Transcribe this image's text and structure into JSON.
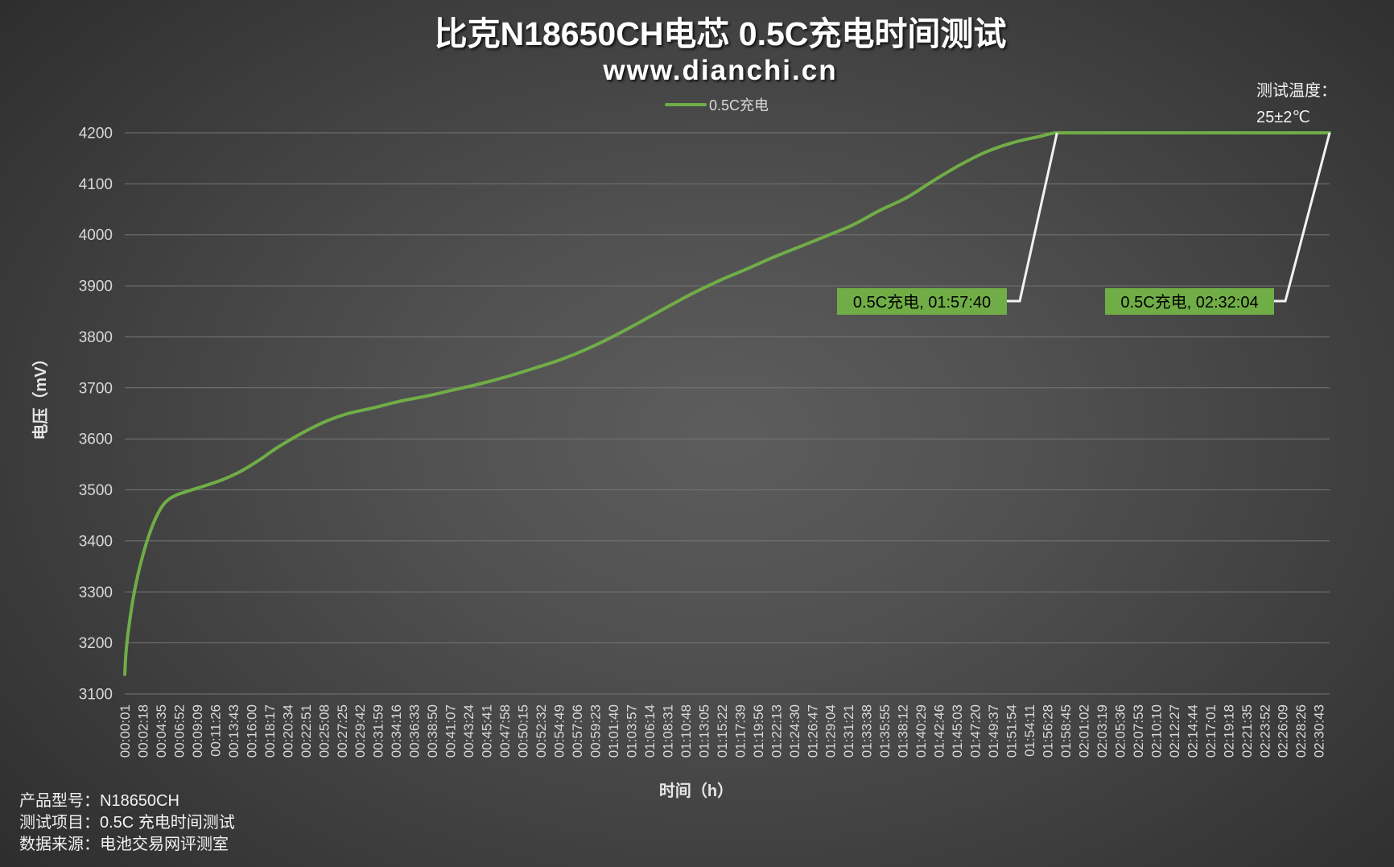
{
  "chart_data": {
    "type": "line",
    "title": "比克N18650CH电芯 0.5C充电时间测试",
    "subtitle": "www.dianchi.cn",
    "xlabel": "时间（h）",
    "ylabel": "电压（mV）",
    "ylim": [
      3100,
      4200
    ],
    "xlim": [
      "00:00:01",
      "02:32:04"
    ],
    "grid": "horizontal",
    "legend": {
      "position": "top"
    },
    "y_ticks": [
      3100,
      3200,
      3300,
      3400,
      3500,
      3600,
      3700,
      3800,
      3900,
      4000,
      4100,
      4200
    ],
    "x_ticks": [
      "00:00:01",
      "00:02:18",
      "00:04:35",
      "00:06:52",
      "00:09:09",
      "00:11:26",
      "00:13:43",
      "00:16:00",
      "00:18:17",
      "00:20:34",
      "00:22:51",
      "00:25:08",
      "00:27:25",
      "00:29:42",
      "00:31:59",
      "00:34:16",
      "00:36:33",
      "00:38:50",
      "00:41:07",
      "00:43:24",
      "00:45:41",
      "00:47:58",
      "00:50:15",
      "00:52:32",
      "00:54:49",
      "00:57:06",
      "00:59:23",
      "01:01:40",
      "01:03:57",
      "01:06:14",
      "01:08:31",
      "01:10:48",
      "01:13:05",
      "01:15:22",
      "01:17:39",
      "01:19:56",
      "01:22:13",
      "01:24:30",
      "01:26:47",
      "01:29:04",
      "01:31:21",
      "01:33:38",
      "01:35:55",
      "01:38:12",
      "01:40:29",
      "01:42:46",
      "01:45:03",
      "01:47:20",
      "01:49:37",
      "01:51:54",
      "01:54:11",
      "01:56:28",
      "01:58:45",
      "02:01:02",
      "02:03:19",
      "02:05:36",
      "02:07:53",
      "02:10:10",
      "02:12:27",
      "02:14:44",
      "02:17:01",
      "02:19:18",
      "02:21:35",
      "02:23:52",
      "02:26:09",
      "02:28:26",
      "02:30:43"
    ],
    "series": [
      {
        "name": "0.5C充电",
        "color": "#70AD47",
        "points": [
          [
            "00:00:01",
            3138
          ],
          [
            "00:00:08",
            3173
          ],
          [
            "00:00:21",
            3208
          ],
          [
            "00:00:41",
            3248
          ],
          [
            "00:01:08",
            3292
          ],
          [
            "00:01:42",
            3335
          ],
          [
            "00:02:16",
            3370
          ],
          [
            "00:03:03",
            3410
          ],
          [
            "00:03:56",
            3445
          ],
          [
            "00:04:50",
            3470
          ],
          [
            "00:05:37",
            3482
          ],
          [
            "00:06:24",
            3489
          ],
          [
            "00:07:52",
            3497
          ],
          [
            "00:10:06",
            3508
          ],
          [
            "00:12:21",
            3520
          ],
          [
            "00:14:36",
            3536
          ],
          [
            "00:16:50",
            3557
          ],
          [
            "00:19:05",
            3581
          ],
          [
            "00:21:19",
            3602
          ],
          [
            "00:23:34",
            3621
          ],
          [
            "00:25:48",
            3637
          ],
          [
            "00:28:03",
            3649
          ],
          [
            "00:31:25",
            3661
          ],
          [
            "00:34:47",
            3674
          ],
          [
            "00:38:08",
            3684
          ],
          [
            "00:41:30",
            3696
          ],
          [
            "00:44:52",
            3708
          ],
          [
            "00:48:14",
            3722
          ],
          [
            "00:51:36",
            3738
          ],
          [
            "00:54:58",
            3755
          ],
          [
            "00:58:19",
            3776
          ],
          [
            "01:01:41",
            3801
          ],
          [
            "01:05:03",
            3829
          ],
          [
            "01:08:25",
            3858
          ],
          [
            "01:11:47",
            3886
          ],
          [
            "01:15:09",
            3911
          ],
          [
            "01:18:30",
            3933
          ],
          [
            "01:21:52",
            3956
          ],
          [
            "01:25:14",
            3977
          ],
          [
            "01:28:36",
            3998
          ],
          [
            "01:31:58",
            4020
          ],
          [
            "01:35:19",
            4048
          ],
          [
            "01:38:41",
            4073
          ],
          [
            "01:42:03",
            4106
          ],
          [
            "01:45:25",
            4137
          ],
          [
            "01:48:47",
            4163
          ],
          [
            "01:52:09",
            4181
          ],
          [
            "01:55:30",
            4193
          ],
          [
            "01:57:40",
            4200
          ],
          [
            "02:32:04",
            4200
          ]
        ]
      }
    ],
    "data_labels": [
      {
        "x": "01:57:40",
        "y": 4200,
        "text": "0.5C充电, 01:57:40"
      },
      {
        "x": "02:32:04",
        "y": 4200,
        "text": "0.5C充电, 02:32:04"
      }
    ]
  },
  "notes": {
    "temperature_label": "测试温度：",
    "temperature_value": "25±2℃"
  },
  "info": [
    "产品型号：N18650CH",
    "测试项目：0.5C 充电时间测试",
    "数据来源：电池交易网评测室"
  ]
}
